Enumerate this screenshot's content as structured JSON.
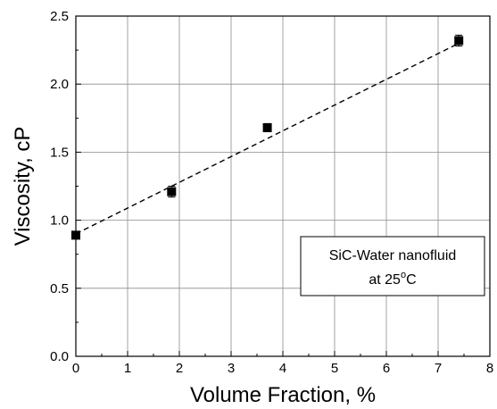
{
  "chart_data": {
    "type": "scatter",
    "title": "",
    "xlabel": "Volume Fraction, %",
    "ylabel": "Viscosity, cP",
    "xlim": [
      0,
      8
    ],
    "ylim": [
      0.0,
      2.5
    ],
    "grid": true,
    "x_ticks": [
      "0",
      "1",
      "2",
      "3",
      "4",
      "5",
      "6",
      "7",
      "8"
    ],
    "y_ticks": [
      "0.0",
      "0.5",
      "1.0",
      "1.5",
      "2.0",
      "2.5"
    ],
    "series": [
      {
        "x": [
          0,
          1.85,
          3.7,
          7.4
        ],
        "y": [
          0.89,
          1.21,
          1.68,
          2.32
        ],
        "y_error": [
          0.02,
          0.04,
          0.03,
          0.04
        ],
        "marker": "square",
        "color": "#000000"
      }
    ],
    "fit_line": {
      "style": "dashed",
      "x": [
        0,
        7.4
      ],
      "y": [
        0.9,
        2.3
      ]
    },
    "annotation": {
      "line1": "SiC-Water nanofluid",
      "line2_prefix": "at 25",
      "line2_super": "o",
      "line2_suffix": "C"
    }
  }
}
